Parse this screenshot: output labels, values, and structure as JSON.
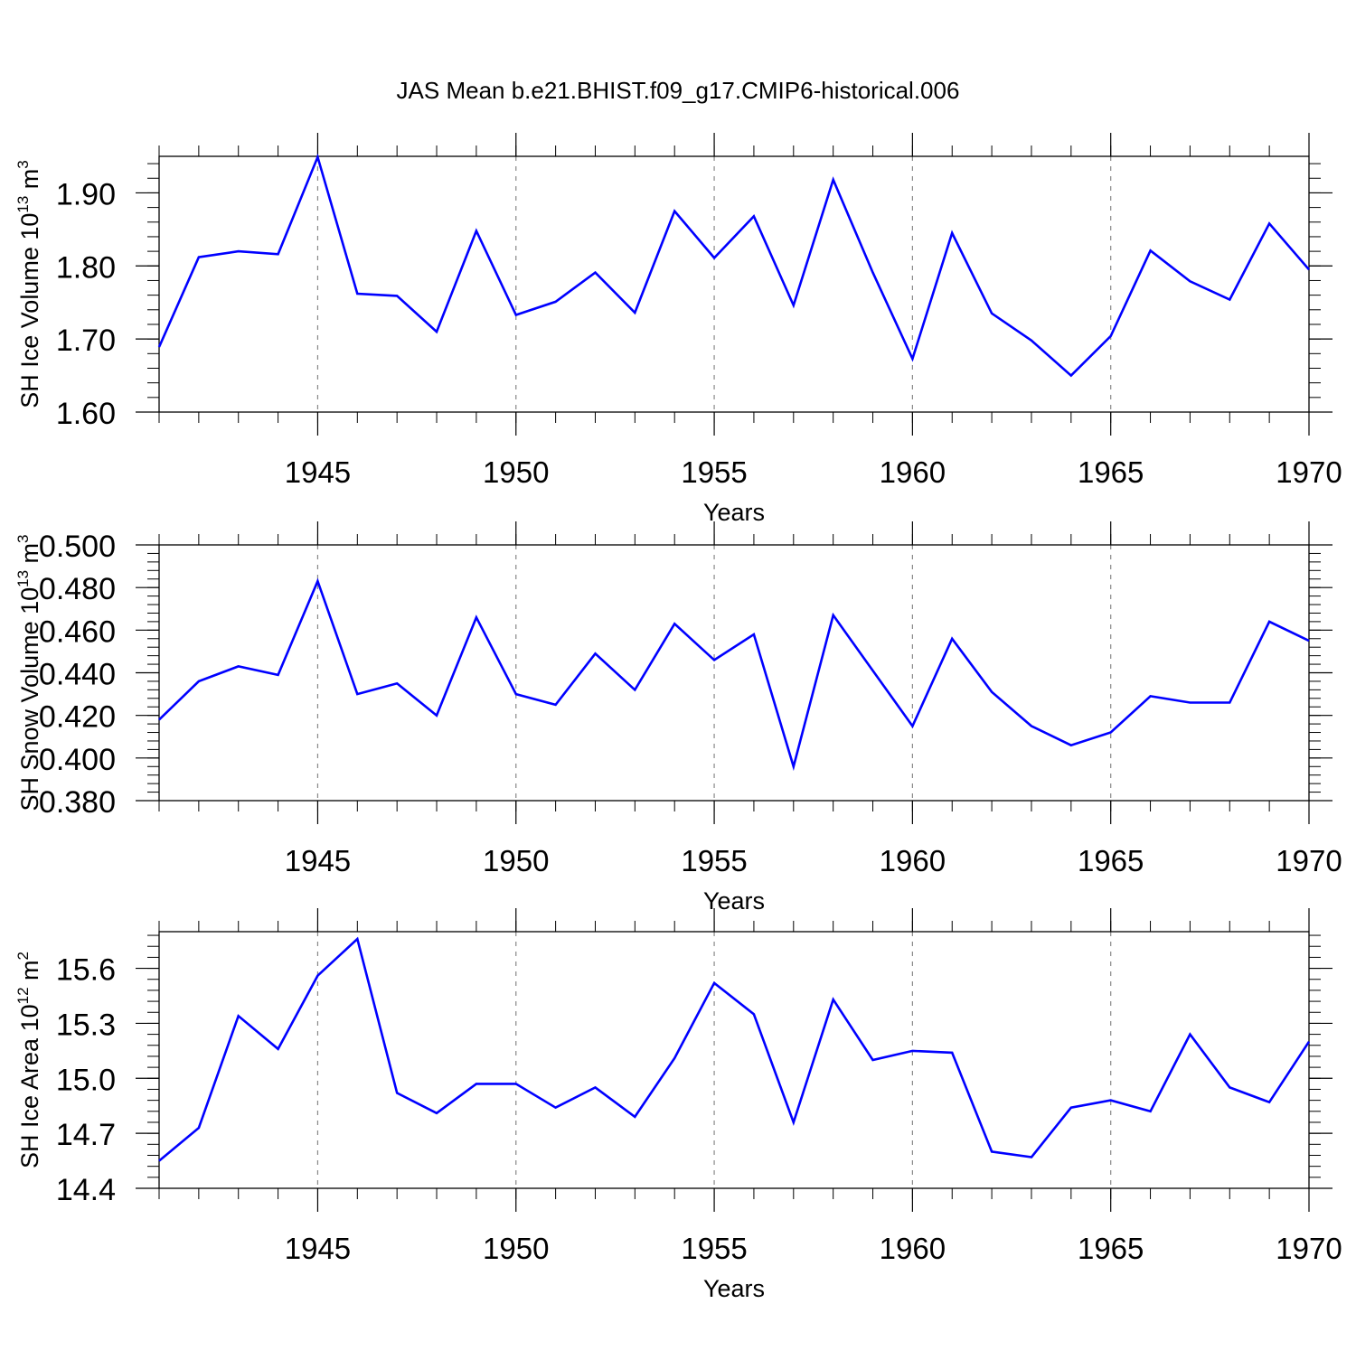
{
  "figure": {
    "title": "JAS Mean b.e21.BHIST.f09_g17.CMIP6-historical.006"
  },
  "chart_data": [
    {
      "type": "line",
      "title": "JAS Mean b.e21.BHIST.f09_g17.CMIP6-historical.006",
      "xlabel": "Years",
      "ylabel": "SH Ice Volume 10",
      "ylabel_exponent": "13",
      "ylabel_unit": " m",
      "ylabel_unit_exponent": "3",
      "xlim": [
        1941,
        1970
      ],
      "ylim": [
        1.6,
        1.95
      ],
      "x_ticks": [
        1945,
        1950,
        1955,
        1960,
        1965,
        1970
      ],
      "y_ticks": [
        "1.60",
        "1.70",
        "1.80",
        "1.90"
      ],
      "grid": "vertical dashed at major x ticks",
      "line_color": "#0000ff",
      "x": [
        1941,
        1942,
        1943,
        1944,
        1945,
        1946,
        1947,
        1948,
        1949,
        1950,
        1951,
        1952,
        1953,
        1954,
        1955,
        1956,
        1957,
        1958,
        1959,
        1960,
        1961,
        1962,
        1963,
        1964,
        1965,
        1966,
        1967,
        1968,
        1969,
        1970
      ],
      "values": [
        1.689,
        1.812,
        1.82,
        1.816,
        1.949,
        1.762,
        1.759,
        1.71,
        1.848,
        1.733,
        1.751,
        1.791,
        1.736,
        1.875,
        1.811,
        1.868,
        1.746,
        1.918,
        1.791,
        1.673,
        1.845,
        1.735,
        1.698,
        1.65,
        1.704,
        1.821,
        1.779,
        1.754,
        1.858,
        1.795
      ]
    },
    {
      "type": "line",
      "xlabel": "Years",
      "ylabel": "SH Snow Volume 10",
      "ylabel_exponent": "13",
      "ylabel_unit": " m",
      "ylabel_unit_exponent": "3",
      "xlim": [
        1941,
        1970
      ],
      "ylim": [
        0.38,
        0.5
      ],
      "x_ticks": [
        1945,
        1950,
        1955,
        1960,
        1965,
        1970
      ],
      "y_ticks": [
        "0.380",
        "0.400",
        "0.420",
        "0.440",
        "0.460",
        "0.480",
        "0.500"
      ],
      "grid": "vertical dashed at major x ticks",
      "line_color": "#0000ff",
      "x": [
        1941,
        1942,
        1943,
        1944,
        1945,
        1946,
        1947,
        1948,
        1949,
        1950,
        1951,
        1952,
        1953,
        1954,
        1955,
        1956,
        1957,
        1958,
        1959,
        1960,
        1961,
        1962,
        1963,
        1964,
        1965,
        1966,
        1967,
        1968,
        1969,
        1970
      ],
      "values": [
        0.418,
        0.436,
        0.443,
        0.439,
        0.483,
        0.43,
        0.435,
        0.42,
        0.466,
        0.43,
        0.425,
        0.449,
        0.432,
        0.463,
        0.446,
        0.458,
        0.396,
        0.467,
        0.441,
        0.415,
        0.456,
        0.431,
        0.415,
        0.406,
        0.412,
        0.429,
        0.426,
        0.426,
        0.464,
        0.455
      ]
    },
    {
      "type": "line",
      "xlabel": "Years",
      "ylabel": "SH Ice Area 10",
      "ylabel_exponent": "12",
      "ylabel_unit": " m",
      "ylabel_unit_exponent": "2",
      "xlim": [
        1941,
        1970
      ],
      "ylim": [
        14.4,
        15.8
      ],
      "x_ticks": [
        1945,
        1950,
        1955,
        1960,
        1965,
        1970
      ],
      "y_ticks": [
        "14.4",
        "14.7",
        "15.0",
        "15.3",
        "15.6"
      ],
      "grid": "vertical dashed at major x ticks",
      "line_color": "#0000ff",
      "x": [
        1941,
        1942,
        1943,
        1944,
        1945,
        1946,
        1947,
        1948,
        1949,
        1950,
        1951,
        1952,
        1953,
        1954,
        1955,
        1956,
        1957,
        1958,
        1959,
        1960,
        1961,
        1962,
        1963,
        1964,
        1965,
        1966,
        1967,
        1968,
        1969,
        1970
      ],
      "values": [
        14.55,
        14.73,
        15.34,
        15.16,
        15.56,
        15.76,
        14.92,
        14.81,
        14.97,
        14.97,
        14.84,
        14.95,
        14.79,
        15.11,
        15.52,
        15.35,
        14.76,
        15.43,
        15.1,
        15.15,
        15.14,
        14.6,
        14.57,
        14.84,
        14.88,
        14.82,
        15.24,
        14.95,
        14.87,
        15.2
      ]
    }
  ]
}
